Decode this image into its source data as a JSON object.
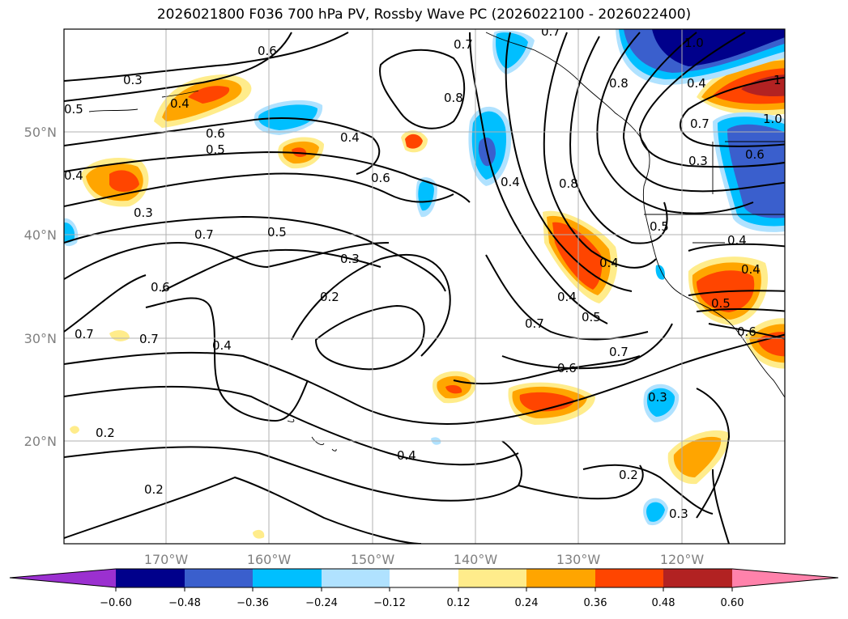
{
  "title": "2026021800 F036 700 hPa PV, Rossby Wave PC (2026022100 - 2026022400)",
  "map": {
    "lat_labels": [
      "50°N",
      "40°N",
      "30°N",
      "20°N"
    ],
    "lon_labels": [
      "170°W",
      "160°W",
      "150°W",
      "140°W",
      "130°W",
      "120°W"
    ],
    "contour_labels": [
      {
        "text": "0.6"
      },
      {
        "text": "0.3"
      },
      {
        "text": "0.4"
      },
      {
        "text": "0.5"
      },
      {
        "text": "0.6"
      },
      {
        "text": "0.5"
      },
      {
        "text": "0.4"
      },
      {
        "text": "0.6"
      },
      {
        "text": "0.4"
      },
      {
        "text": "0.3"
      },
      {
        "text": "0.7"
      },
      {
        "text": "0.5"
      },
      {
        "text": "0.3"
      },
      {
        "text": "0.6"
      },
      {
        "text": "0.2"
      },
      {
        "text": "0.7"
      },
      {
        "text": "0.7"
      },
      {
        "text": "0.4"
      },
      {
        "text": "0.2"
      },
      {
        "text": "0.2"
      },
      {
        "text": "0.4"
      },
      {
        "text": "0.7"
      },
      {
        "text": "0.8"
      },
      {
        "text": "0.4"
      },
      {
        "text": "0.8"
      },
      {
        "text": "0.4"
      },
      {
        "text": "0.5"
      },
      {
        "text": "0.7"
      },
      {
        "text": "0.6"
      },
      {
        "text": "0.7"
      },
      {
        "text": "0.3"
      },
      {
        "text": "0.2"
      },
      {
        "text": "0.3"
      },
      {
        "text": "0.8"
      },
      {
        "text": "1.0"
      },
      {
        "text": "0.4"
      },
      {
        "text": "1"
      },
      {
        "text": "0.7"
      },
      {
        "text": "1.0"
      },
      {
        "text": "0.6"
      },
      {
        "text": "0.3"
      },
      {
        "text": "0.5"
      },
      {
        "text": "0.4"
      },
      {
        "text": "0.6"
      },
      {
        "text": "0.4"
      },
      {
        "text": "0.5"
      },
      {
        "text": "0.4"
      },
      {
        "text": "0.7"
      }
    ]
  },
  "colorbar": {
    "ticks": [
      "−0.60",
      "−0.48",
      "−0.36",
      "−0.24",
      "−0.12",
      "0.12",
      "0.24",
      "0.36",
      "0.48",
      "0.60"
    ],
    "colors": [
      "#9b30d0",
      "#00008b",
      "#3a5fcd",
      "#00bfff",
      "#b0e2ff",
      "#ffffff",
      "#ffec8b",
      "#ffa500",
      "#ff4500",
      "#b22222",
      "#ff82ab"
    ]
  }
}
